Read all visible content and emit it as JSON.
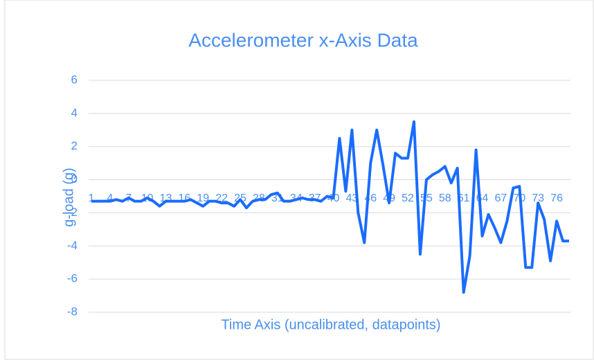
{
  "chart_data": {
    "type": "line",
    "title": "Accelerometer x-Axis Data",
    "x_label": "Time Axis (uncalibrated, datapoints)",
    "y_label": "g-load (g)",
    "categories": [
      1,
      null,
      null,
      4,
      null,
      null,
      7,
      null,
      null,
      10,
      null,
      null,
      13,
      null,
      null,
      16,
      null,
      null,
      19,
      null,
      null,
      22,
      null,
      null,
      25,
      null,
      null,
      28,
      null,
      null,
      31,
      null,
      null,
      34,
      null,
      null,
      37,
      null,
      null,
      40,
      null,
      null,
      43,
      null,
      null,
      46,
      null,
      null,
      49,
      null,
      null,
      52,
      null,
      null,
      55,
      null,
      null,
      58,
      null,
      null,
      61,
      null,
      null,
      64,
      null,
      null,
      67,
      null,
      null,
      70,
      null,
      null,
      73,
      null,
      null,
      76,
      null,
      null
    ],
    "series": [
      {
        "name": "x",
        "color": "#1a6cff",
        "values": [
          -1.3,
          -1.3,
          -1.3,
          -1.3,
          -1.2,
          -1.3,
          -1.1,
          -1.3,
          -1.3,
          -1.1,
          -1.3,
          -1.6,
          -1.3,
          -1.3,
          -1.3,
          -1.3,
          -1.2,
          -1.4,
          -1.6,
          -1.3,
          -1.3,
          -1.4,
          -1.4,
          -1.6,
          -1.2,
          -1.7,
          -1.3,
          -1.2,
          -1.2,
          -0.9,
          -0.8,
          -1.3,
          -1.3,
          -1.2,
          -1.1,
          -1.2,
          -1.2,
          -1.3,
          -1.0,
          -1.1,
          2.5,
          -0.7,
          3.0,
          -2.0,
          -3.8,
          1.0,
          3.0,
          0.9,
          -1.4,
          1.6,
          1.3,
          1.3,
          3.5,
          -4.5,
          0.0,
          0.3,
          0.5,
          0.8,
          -0.2,
          0.7,
          -6.8,
          -4.6,
          1.8,
          -3.4,
          -2.1,
          -2.9,
          -3.8,
          -2.5,
          -0.5,
          -0.4,
          -5.3,
          -5.3,
          -1.4,
          -2.4,
          -4.9,
          -2.5,
          -3.7,
          -3.7
        ]
      }
    ],
    "ylim": [
      -8,
      6
    ],
    "yticks": [
      -8,
      -6,
      -4,
      -2,
      0,
      2,
      4,
      6
    ],
    "grid": true
  }
}
